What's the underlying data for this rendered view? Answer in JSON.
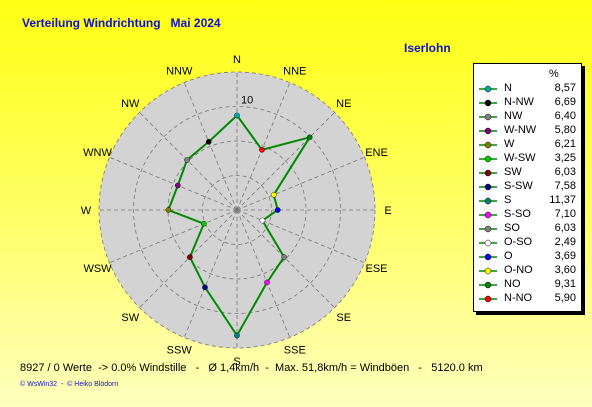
{
  "header": {
    "title": "Verteilung Windrichtung   Mai 2024",
    "location": "Iserlohn"
  },
  "chart_data": {
    "type": "radar",
    "title": "Verteilung Windrichtung   Mai 2024",
    "unit": "%",
    "max_value": 12.5,
    "ring_label": "10",
    "directions": [
      "N",
      "NNE",
      "NE",
      "ENE",
      "E",
      "ESE",
      "SE",
      "SSE",
      "S",
      "SSW",
      "SW",
      "WSW",
      "W",
      "WNW",
      "NW",
      "NNW"
    ],
    "series": [
      {
        "values": [
          8.57,
          5.9,
          9.31,
          3.6,
          3.69,
          2.49,
          6.03,
          7.1,
          11.37,
          7.58,
          6.03,
          3.25,
          6.21,
          5.8,
          6.4,
          6.69
        ]
      }
    ],
    "line_color": "#008a00",
    "disc_color": "#d3d3d3",
    "legend": {
      "unit_label": "%",
      "items": [
        {
          "label": "N",
          "value": "8,57",
          "color": "#00aaaa"
        },
        {
          "label": "N-NW",
          "value": "6,69",
          "color": "#000000"
        },
        {
          "label": "NW",
          "value": "6,40",
          "color": "#808080"
        },
        {
          "label": "W-NW",
          "value": "5,80",
          "color": "#800080"
        },
        {
          "label": "W",
          "value": "6,21",
          "color": "#808000"
        },
        {
          "label": "W-SW",
          "value": "3,25",
          "color": "#00cc00"
        },
        {
          "label": "SW",
          "value": "6,03",
          "color": "#800000"
        },
        {
          "label": "S-SW",
          "value": "7,58",
          "color": "#000080"
        },
        {
          "label": "S",
          "value": "11,37",
          "color": "#008080"
        },
        {
          "label": "S-SO",
          "value": "7,10",
          "color": "#ff00ff"
        },
        {
          "label": "SO",
          "value": "6,03",
          "color": "#808080"
        },
        {
          "label": "O-SO",
          "value": "2,49",
          "color": "#ffffff"
        },
        {
          "label": "O",
          "value": "3,69",
          "color": "#0000ff"
        },
        {
          "label": "O-NO",
          "value": "3,60",
          "color": "#ffff00"
        },
        {
          "label": "NO",
          "value": "9,31",
          "color": "#008000"
        },
        {
          "label": "N-NO",
          "value": "5,90",
          "color": "#ff0000"
        }
      ]
    }
  },
  "stats": "8927 / 0 Werte  -> 0.0% Windstille   -   Ø 1,4km/h  -  Max. 51,8km/h = Windböen   -   5120.0 km",
  "footer": "© WsWin32  -  © Heiko Blödorn"
}
